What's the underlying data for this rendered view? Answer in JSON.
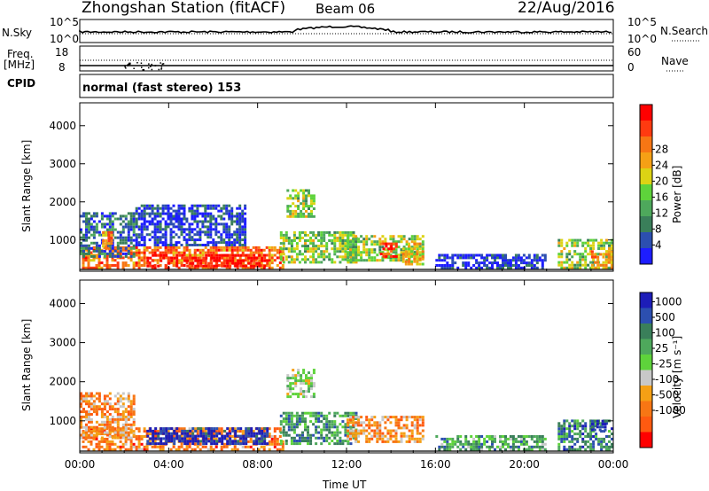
{
  "header": {
    "station": "Zhongshan Station (fitACF)",
    "beam": "Beam 06",
    "date": "22/Aug/2016"
  },
  "strip1": {
    "left_label": "N.Sky",
    "right_label": "N.Search",
    "left_ticks": [
      "10^5",
      "10^0"
    ],
    "right_ticks": [
      "10^5",
      "10^0"
    ]
  },
  "strip2": {
    "left_label_top": "Freq.",
    "left_label_bottom": "[MHz]",
    "right_label": "Nave",
    "left_ticks": [
      "18",
      "8"
    ],
    "right_ticks": [
      "60",
      "0"
    ]
  },
  "strip3": {
    "left_label": "CPID",
    "mode_text": "normal (fast stereo) 153"
  },
  "chart_data": [
    {
      "type": "heatmap",
      "panel": "power",
      "ylabel": "Slant Range [km]",
      "xlabel": "Time UT",
      "x_range_hours": [
        0,
        24
      ],
      "ylim": [
        180,
        4600
      ],
      "y_ticks": [
        "1000",
        "2000",
        "3000",
        "4000"
      ],
      "colorbar": {
        "label": "Power [dB]",
        "ticks": [
          "4",
          "8",
          "12",
          "16",
          "20",
          "24",
          "28"
        ],
        "colors": [
          "#1d1dff",
          "#2c4fb0",
          "#3a7f5a",
          "#4ea85c",
          "#5ed33b",
          "#dcd314",
          "#f5a015",
          "#f77614",
          "#ff3a10",
          "#ff0000"
        ]
      },
      "regions": [
        {
          "t0": 0.1,
          "t1": 9.2,
          "r0": 300,
          "r1": 900,
          "level": 0.75
        },
        {
          "t0": 3.0,
          "t1": 8.5,
          "r0": 350,
          "r1": 700,
          "level": 0.95
        },
        {
          "t0": 0.0,
          "t1": 2.5,
          "r0": 600,
          "r1": 1800,
          "level": 0.2
        },
        {
          "t0": 1.0,
          "t1": 1.5,
          "r0": 800,
          "r1": 1300,
          "level": 0.7
        },
        {
          "t0": 2.5,
          "t1": 7.5,
          "r0": 900,
          "r1": 2000,
          "level": 0.12
        },
        {
          "t0": 9.3,
          "t1": 10.6,
          "r0": 1650,
          "r1": 2400,
          "level": 0.45
        },
        {
          "t0": 9.0,
          "t1": 12.5,
          "r0": 450,
          "r1": 1300,
          "level": 0.45
        },
        {
          "t0": 12.0,
          "t1": 15.5,
          "r0": 500,
          "r1": 1200,
          "level": 0.45
        },
        {
          "t0": 13.5,
          "t1": 14.3,
          "r0": 600,
          "r1": 1000,
          "level": 0.9
        },
        {
          "t0": 14.5,
          "t1": 15.5,
          "r0": 400,
          "r1": 1000,
          "level": 0.6
        },
        {
          "t0": 16.0,
          "t1": 21.0,
          "r0": 300,
          "r1": 700,
          "level": 0.08
        },
        {
          "t0": 21.5,
          "t1": 24.0,
          "r0": 300,
          "r1": 1100,
          "level": 0.45
        },
        {
          "t0": 23.0,
          "t1": 24.0,
          "r0": 300,
          "r1": 800,
          "level": 0.7
        }
      ]
    },
    {
      "type": "heatmap",
      "panel": "velocity",
      "ylabel": "Slant Range [km]",
      "xlabel": "Time UT",
      "x_range_hours": [
        0,
        24
      ],
      "ylim": [
        180,
        4600
      ],
      "y_ticks": [
        "1000",
        "2000",
        "3000",
        "4000"
      ],
      "x_ticks": [
        "00:00",
        "04:00",
        "08:00",
        "12:00",
        "16:00",
        "20:00",
        "00:00"
      ],
      "colorbar": {
        "label": "Velocity [m s⁻¹]",
        "ticks": [
          "1000",
          "500",
          "100",
          "25",
          "-25",
          "-100",
          "-500",
          "-1000"
        ],
        "colors": [
          "#1d1db8",
          "#2c4fb0",
          "#3a7f5a",
          "#4ea85c",
          "#5ed33b",
          "#c8c8c8",
          "#f5a015",
          "#f77614",
          "#ff5a10",
          "#ff0000"
        ]
      },
      "regions": [
        {
          "t0": 0.1,
          "t1": 9.2,
          "r0": 300,
          "r1": 900,
          "level": 0.75
        },
        {
          "t0": 3.0,
          "t1": 8.5,
          "r0": 450,
          "r1": 900,
          "level": 0.05
        },
        {
          "t0": 0.0,
          "t1": 2.5,
          "r0": 600,
          "r1": 1800,
          "level": 0.7
        },
        {
          "t0": 9.3,
          "t1": 10.6,
          "r0": 1650,
          "r1": 2400,
          "level": 0.5
        },
        {
          "t0": 9.0,
          "t1": 12.5,
          "r0": 450,
          "r1": 1300,
          "level": 0.3
        },
        {
          "t0": 12.0,
          "t1": 15.5,
          "r0": 500,
          "r1": 1200,
          "level": 0.7
        },
        {
          "t0": 16.0,
          "t1": 21.0,
          "r0": 300,
          "r1": 700,
          "level": 0.35
        },
        {
          "t0": 21.5,
          "t1": 24.0,
          "r0": 300,
          "r1": 1100,
          "level": 0.25
        },
        {
          "t0": 23.0,
          "t1": 23.7,
          "r0": 800,
          "r1": 1100,
          "level": 0.05
        }
      ]
    }
  ]
}
